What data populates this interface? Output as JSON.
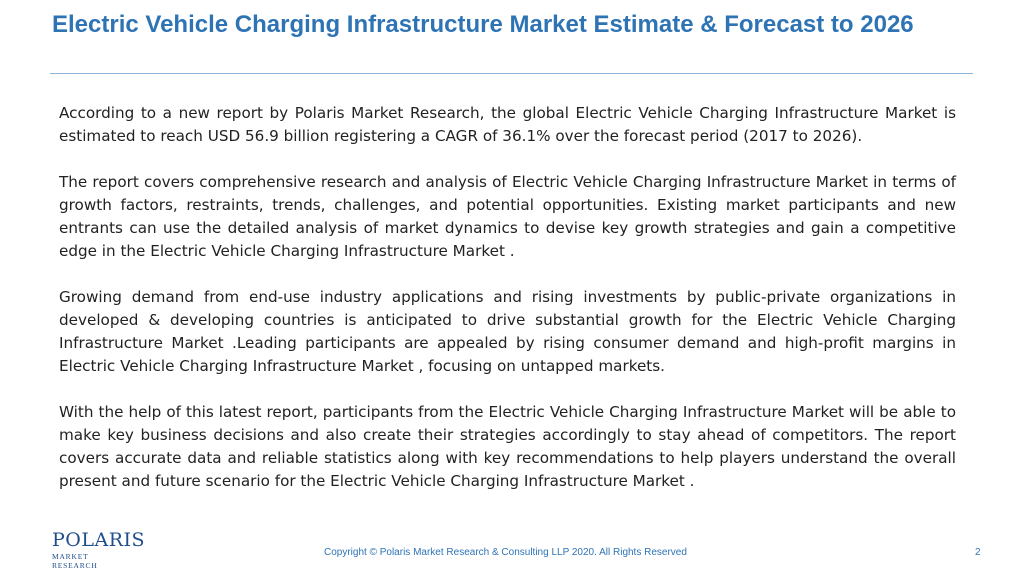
{
  "slide": {
    "title": "Electric Vehicle Charging Infrastructure Market Estimate & Forecast to 2026",
    "paragraphs": [
      "According to a new report by Polaris Market Research, the global Electric Vehicle Charging Infrastructure Market is estimated to reach USD 56.9 billion registering a CAGR of 36.1% over the forecast period (2017 to 2026).",
      "The report covers comprehensive research and analysis of Electric Vehicle Charging Infrastructure Market  in terms of growth factors, restraints, trends, challenges, and potential opportunities. Existing market participants and new entrants can use the detailed analysis of market dynamics to devise key growth strategies and gain a competitive edge in the Electric Vehicle Charging Infrastructure Market .",
      "Growing demand from end-use industry applications and rising investments by public-private organizations in developed & developing countries is anticipated to drive substantial growth for the Electric Vehicle Charging Infrastructure Market .Leading participants are appealed by rising consumer demand and high-profit margins in Electric Vehicle Charging Infrastructure Market , focusing on untapped markets.",
      "With the help of this latest report, participants from the Electric Vehicle Charging Infrastructure Market  will be able to make key business decisions and also create their strategies accordingly to stay ahead of competitors. The report covers accurate data and reliable statistics along with key recommendations to help players understand the overall present and future scenario for the Electric Vehicle Charging Infrastructure Market ."
    ]
  },
  "footer": {
    "logo_word": "POLARIS",
    "logo_sub": "MARKET RESEARCH",
    "copyright": "Copyright © Polaris Market Research & Consulting LLP 2020. All Rights Reserved",
    "page_number": "2"
  },
  "colors": {
    "title": "#2e74b5",
    "rule": "#8fb4d9",
    "body": "#222222",
    "logo": "#1f4e8c"
  }
}
